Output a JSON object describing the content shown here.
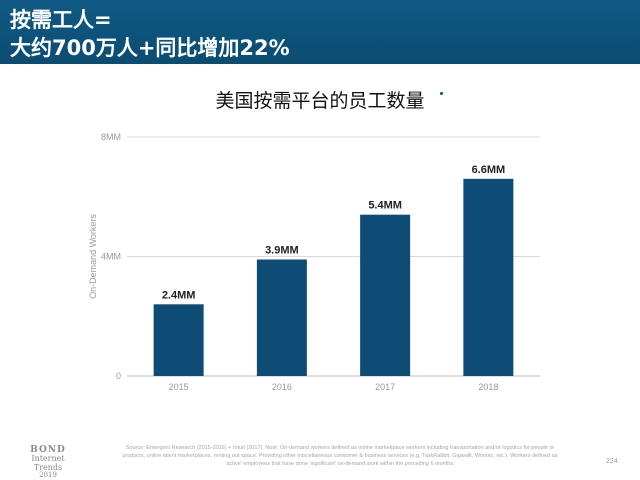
{
  "header": {
    "line1": "按需工人=",
    "line2": "大约700万人+同比增加22%"
  },
  "colors": {
    "header_bg": "#0b4c72",
    "bar": "#0f4c75"
  },
  "chart_data": {
    "type": "bar",
    "title": "美国按需平台的员工数量",
    "ylabel": "On-Demand Workers",
    "xlabel": "",
    "categories": [
      "2015",
      "2016",
      "2017",
      "2018"
    ],
    "values": [
      2.4,
      3.9,
      5.4,
      6.6
    ],
    "value_labels": [
      "2.4MM",
      "3.9MM",
      "5.4MM",
      "6.6MM"
    ],
    "yticks": [
      0,
      4,
      8
    ],
    "ytick_labels": [
      "0",
      "4MM",
      "8MM"
    ],
    "ylim": [
      0,
      8
    ],
    "grid": true
  },
  "footer": {
    "logo_line1": "BOND",
    "logo_line2": "Internet Trends",
    "logo_line3": "2019",
    "source": "Source: Emergent Research (2015-2016) + Intuit (2017). Note: On-demand workers defined as online marketplace workers including transportation and/or logistics for people or products, online talent marketplaces, renting out space. Providing other miscellaneous consumer & business services (e.g. TaskRabbit, Gigwalk, Wonolo, etc.). Workers defined as 'active' employees that have done 'significant' on-demand work within the preceding 6 months.",
    "page_number": "224"
  }
}
